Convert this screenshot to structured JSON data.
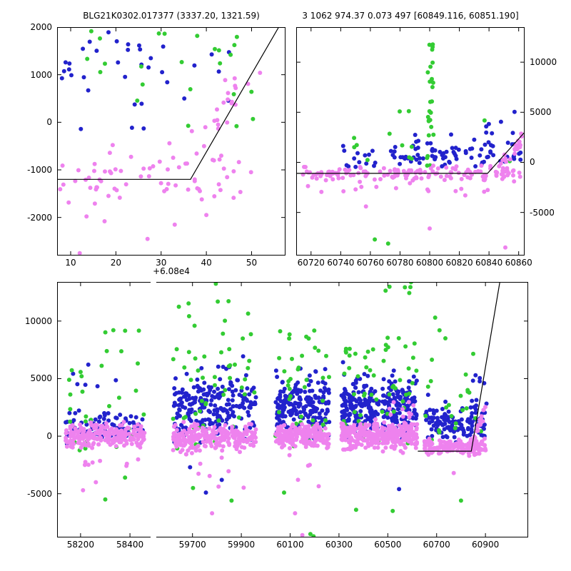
{
  "colors": {
    "blue": "#2222cc",
    "green": "#33cc33",
    "violet": "#ee82ee",
    "line": "#000000",
    "axis": "#000000"
  },
  "chart_data": [
    {
      "id": "top-left-zoom",
      "type": "scatter",
      "title": "BLG21K0302.017377 (3337.20, 1321.59)",
      "xlim": [
        7,
        57.5
      ],
      "ylim": [
        -2800,
        2000
      ],
      "xtick_offset": "+6.08e4",
      "xticks": [
        {
          "v": 10,
          "label": "10"
        },
        {
          "v": 20,
          "label": "20"
        },
        {
          "v": 30,
          "label": "30"
        },
        {
          "v": 40,
          "label": "40"
        },
        {
          "v": 50,
          "label": "50"
        }
      ],
      "yticks": [
        {
          "v": -2000,
          "label": "-2000"
        },
        {
          "v": -1000,
          "label": "-1000"
        },
        {
          "v": 0,
          "label": "0"
        },
        {
          "v": 1000,
          "label": "1000"
        },
        {
          "v": 2000,
          "label": "2000"
        }
      ],
      "ytick_side": "left",
      "grid": false,
      "series": [
        {
          "color": "violet",
          "n": 68,
          "x": [
            7,
            52
          ],
          "y": {
            "dist": "normal",
            "mean": -1100,
            "sd": 330,
            "clip": [
              -1850,
              -350
            ]
          }
        },
        {
          "color": "violet",
          "n": 16,
          "x": [
            36,
            52
          ],
          "y": {
            "dist": "trend",
            "from": -700,
            "to": 800,
            "sd": 280
          }
        },
        {
          "color": "violet",
          "n": 6,
          "x": [
            44,
            52.5
          ],
          "y": {
            "dist": "uniform",
            "range": [
              550,
              1150
            ]
          }
        },
        {
          "color": "blue",
          "n": 30,
          "x": [
            7,
            45
          ],
          "y": {
            "dist": "normal",
            "mean": 1150,
            "sd": 550,
            "clip": [
              -150,
              1950
            ]
          }
        },
        {
          "color": "blue",
          "n": 6,
          "x": [
            7,
            11.5
          ],
          "y": {
            "dist": "uniform",
            "range": [
              700,
              1900
            ]
          }
        },
        {
          "color": "green",
          "n": 24,
          "x": [
            13,
            52
          ],
          "y": {
            "dist": "uniform",
            "range": [
              -100,
              1950
            ]
          }
        }
      ],
      "points": [
        [
          12,
          -2750,
          "violet"
        ],
        [
          17.5,
          -2080,
          "violet"
        ],
        [
          27,
          -2450,
          "violet"
        ],
        [
          40,
          -1950,
          "violet"
        ],
        [
          13.5,
          -1980,
          "violet"
        ],
        [
          33,
          -2150,
          "violet"
        ]
      ],
      "line": {
        "points": [
          [
            7,
            -1200
          ],
          [
            36.5,
            -1200
          ],
          [
            56,
            2000
          ]
        ]
      }
    },
    {
      "id": "top-right-zoom",
      "type": "scatter",
      "title": "3 1062 974.37 0.073 497 [60849.116, 60851.190]",
      "xlim": [
        60710,
        60864
      ],
      "ylim": [
        -9300,
        13500
      ],
      "xticks": [
        {
          "v": 60720,
          "label": "60720"
        },
        {
          "v": 60740,
          "label": "60740"
        },
        {
          "v": 60760,
          "label": "60760"
        },
        {
          "v": 60780,
          "label": "60780"
        },
        {
          "v": 60800,
          "label": "60800"
        },
        {
          "v": 60820,
          "label": "60820"
        },
        {
          "v": 60840,
          "label": "60840"
        },
        {
          "v": 60860,
          "label": "60860"
        }
      ],
      "yticks": [
        {
          "v": -5000,
          "label": "-5000"
        },
        {
          "v": 0,
          "label": "0"
        },
        {
          "v": 5000,
          "label": "5000"
        },
        {
          "v": 10000,
          "label": "10000"
        }
      ],
      "ytick_side": "right",
      "grid": false,
      "series": [
        {
          "color": "violet",
          "n": 150,
          "x": [
            60712,
            60861
          ],
          "y": {
            "dist": "normal",
            "mean": -1150,
            "sd": 420,
            "clip": [
              -2400,
              -200
            ]
          }
        },
        {
          "color": "violet",
          "n": 12,
          "x": [
            60715,
            60855
          ],
          "y": {
            "dist": "uniform",
            "range": [
              -2950,
              -2350
            ]
          }
        },
        {
          "color": "violet",
          "n": 22,
          "x": [
            60844,
            60863
          ],
          "y": {
            "dist": "trend",
            "from": -900,
            "to": 2300,
            "sd": 320
          }
        },
        {
          "color": "blue",
          "n": 72,
          "x": [
            60788,
            60862
          ],
          "y": {
            "dist": "normal",
            "mean": 1000,
            "sd": 750,
            "clip": [
              -400,
              3200
            ]
          }
        },
        {
          "color": "blue",
          "n": 28,
          "x": [
            60738,
            60792
          ],
          "y": {
            "dist": "normal",
            "mean": 600,
            "sd": 600,
            "clip": [
              -500,
              2400
            ]
          }
        },
        {
          "color": "blue",
          "n": 7,
          "x": [
            60838,
            60862
          ],
          "y": {
            "dist": "uniform",
            "range": [
              2800,
              5100
            ]
          }
        },
        {
          "color": "green",
          "n": 26,
          "x": [
            60798,
            60803
          ],
          "y": {
            "dist": "uniform",
            "range": [
              -600,
              12200
            ]
          }
        },
        {
          "color": "green",
          "n": 14,
          "x": [
            60742,
            60858
          ],
          "y": {
            "dist": "uniform",
            "range": [
              -300,
              5200
            ]
          }
        }
      ],
      "points": [
        [
          60763,
          -7700,
          "green"
        ],
        [
          60772,
          -8100,
          "green"
        ],
        [
          60757,
          -4400,
          "violet"
        ],
        [
          60800,
          -6600,
          "violet"
        ],
        [
          60824,
          -3300,
          "violet"
        ],
        [
          60851,
          -8500,
          "violet"
        ],
        [
          60727,
          -2950,
          "violet"
        ]
      ],
      "line": {
        "points": [
          [
            60710,
            -1100
          ],
          [
            60839,
            -1100
          ],
          [
            60864,
            3000
          ]
        ]
      }
    },
    {
      "id": "bottom-full-lightcurve",
      "type": "scatter",
      "x_segments": [
        {
          "data": [
            58105,
            58495
          ],
          "frac": [
            0,
            0.2045
          ]
        },
        {
          "data": [
            59540,
            61075
          ],
          "frac": [
            0.2045,
            1
          ]
        }
      ],
      "x_break_frac": 0.2045,
      "ylim": [
        -8800,
        13400
      ],
      "xticks": [
        {
          "v": 58200,
          "label": "58200"
        },
        {
          "v": 58400,
          "label": "58400"
        },
        {
          "v": 59700,
          "label": "59700"
        },
        {
          "v": 59900,
          "label": "59900"
        },
        {
          "v": 60100,
          "label": "60100"
        },
        {
          "v": 60300,
          "label": "60300"
        },
        {
          "v": 60500,
          "label": "60500"
        },
        {
          "v": 60700,
          "label": "60700"
        },
        {
          "v": 60900,
          "label": "60900"
        }
      ],
      "yticks": [
        {
          "v": -5000,
          "label": "-5000"
        },
        {
          "v": 0,
          "label": "0"
        },
        {
          "v": 5000,
          "label": "5000"
        },
        {
          "v": 10000,
          "label": "10000"
        }
      ],
      "ytick_side": "left",
      "grid": false,
      "series": [
        {
          "color": "violet",
          "n": 230,
          "x": [
            58140,
            58460
          ],
          "y": {
            "dist": "normal",
            "mean": 50,
            "sd": 480,
            "clip": [
              -1600,
              1500
            ]
          }
        },
        {
          "color": "violet",
          "n": 8,
          "x": [
            58160,
            58440
          ],
          "y": {
            "dist": "uniform",
            "range": [
              -2600,
              -1700
            ]
          }
        },
        {
          "color": "blue",
          "n": 85,
          "x": [
            58140,
            58460
          ],
          "y": {
            "dist": "normal",
            "mean": 700,
            "sd": 700,
            "clip": [
              -1200,
              2800
            ]
          }
        },
        {
          "color": "blue",
          "n": 6,
          "x": [
            58150,
            58430
          ],
          "y": {
            "dist": "uniform",
            "range": [
              3200,
              7000
            ]
          }
        },
        {
          "color": "green",
          "n": 20,
          "x": [
            58140,
            58460
          ],
          "y": {
            "dist": "uniform",
            "range": [
              -1500,
              4000
            ]
          }
        },
        {
          "color": "green",
          "n": 12,
          "x": [
            58150,
            58440
          ],
          "y": {
            "dist": "uniform",
            "range": [
              4000,
              9800
            ]
          }
        },
        {
          "color": "violet",
          "n": 250,
          "x": [
            59620,
            59960
          ],
          "y": {
            "dist": "normal",
            "mean": -100,
            "sd": 550,
            "clip": [
              -2200,
              1300
            ]
          }
        },
        {
          "color": "violet",
          "n": 6,
          "x": [
            59650,
            59940
          ],
          "y": {
            "dist": "uniform",
            "range": [
              -4800,
              -2400
            ]
          }
        },
        {
          "color": "blue",
          "n": 240,
          "x": [
            59620,
            59960
          ],
          "y": {
            "dist": "normal",
            "mean": 2400,
            "sd": 1500,
            "clip": [
              -600,
              7200
            ]
          }
        },
        {
          "color": "green",
          "n": 48,
          "x": [
            59620,
            59960
          ],
          "y": {
            "dist": "uniform",
            "range": [
              -1800,
              9200
            ]
          }
        },
        {
          "color": "green",
          "n": 9,
          "x": [
            59640,
            59930
          ],
          "y": {
            "dist": "uniform",
            "range": [
              9500,
              13900
            ]
          }
        },
        {
          "color": "violet",
          "n": 220,
          "x": [
            60040,
            60260
          ],
          "y": {
            "dist": "normal",
            "mean": 0,
            "sd": 500,
            "clip": [
              -1700,
              1400
            ]
          }
        },
        {
          "color": "violet",
          "n": 4,
          "x": [
            60060,
            60240
          ],
          "y": {
            "dist": "uniform",
            "range": [
              -4400,
              -2200
            ]
          }
        },
        {
          "color": "blue",
          "n": 210,
          "x": [
            60040,
            60260
          ],
          "y": {
            "dist": "normal",
            "mean": 2400,
            "sd": 1350,
            "clip": [
              -400,
              6600
            ]
          }
        },
        {
          "color": "green",
          "n": 40,
          "x": [
            60040,
            60260
          ],
          "y": {
            "dist": "uniform",
            "range": [
              -1000,
              9200
            ]
          }
        },
        {
          "color": "violet",
          "n": 180,
          "x": [
            60310,
            60465
          ],
          "y": {
            "dist": "normal",
            "mean": 50,
            "sd": 550,
            "clip": [
              -1800,
              1500
            ]
          }
        },
        {
          "color": "blue",
          "n": 160,
          "x": [
            60310,
            60465
          ],
          "y": {
            "dist": "normal",
            "mean": 2500,
            "sd": 1300,
            "clip": [
              -200,
              6600
            ]
          }
        },
        {
          "color": "green",
          "n": 30,
          "x": [
            60310,
            60465
          ],
          "y": {
            "dist": "uniform",
            "range": [
              -900,
              9000
            ]
          }
        },
        {
          "color": "violet",
          "n": 180,
          "x": [
            60475,
            60620
          ],
          "y": {
            "dist": "normal",
            "mean": 0,
            "sd": 550,
            "clip": [
              -1700,
              1500
            ]
          }
        },
        {
          "color": "violet",
          "n": 10,
          "x": [
            60490,
            60615
          ],
          "y": {
            "dist": "uniform",
            "range": [
              1600,
              3100
            ]
          }
        },
        {
          "color": "blue",
          "n": 150,
          "x": [
            60475,
            60620
          ],
          "y": {
            "dist": "normal",
            "mean": 2400,
            "sd": 1300,
            "clip": [
              -300,
              6500
            ]
          }
        },
        {
          "color": "green",
          "n": 26,
          "x": [
            60475,
            60620
          ],
          "y": {
            "dist": "uniform",
            "range": [
              -700,
              8800
            ]
          }
        },
        {
          "color": "green",
          "n": 6,
          "x": [
            60490,
            60600
          ],
          "y": {
            "dist": "uniform",
            "range": [
              12400,
              13400
            ]
          }
        },
        {
          "color": "violet",
          "n": 170,
          "x": [
            60650,
            60905
          ],
          "y": {
            "dist": "normal",
            "mean": -950,
            "sd": 330,
            "clip": [
              -1900,
              -100
            ]
          }
        },
        {
          "color": "violet",
          "n": 22,
          "x": [
            60845,
            60900
          ],
          "y": {
            "dist": "trend",
            "from": -700,
            "to": 2300,
            "sd": 300
          }
        },
        {
          "color": "blue",
          "n": 130,
          "x": [
            60650,
            60905
          ],
          "y": {
            "dist": "normal",
            "mean": 1100,
            "sd": 900,
            "clip": [
              -600,
              4200
            ]
          }
        },
        {
          "color": "blue",
          "n": 5,
          "x": [
            60840,
            60895
          ],
          "y": {
            "dist": "uniform",
            "range": [
              4300,
              5400
            ]
          }
        },
        {
          "color": "green",
          "n": 22,
          "x": [
            60650,
            60900
          ],
          "y": {
            "dist": "uniform",
            "range": [
              -1400,
              7600
            ]
          }
        }
      ],
      "points": [
        [
          58210,
          -4700,
          "violet"
        ],
        [
          58262,
          -4000,
          "violet"
        ],
        [
          58300,
          -5500,
          "green"
        ],
        [
          58380,
          -3600,
          "green"
        ],
        [
          59780,
          -6700,
          "violet"
        ],
        [
          59690,
          -2700,
          "blue"
        ],
        [
          59755,
          -4900,
          "blue"
        ],
        [
          59820,
          -3800,
          "blue"
        ],
        [
          59860,
          -5600,
          "green"
        ],
        [
          59702,
          -4500,
          "green"
        ],
        [
          60150,
          -8600,
          "violet"
        ],
        [
          60120,
          -6700,
          "violet"
        ],
        [
          60075,
          -4900,
          "green"
        ],
        [
          60183,
          -8500,
          "green"
        ],
        [
          60196,
          -8700,
          "green"
        ],
        [
          60370,
          -6400,
          "green"
        ],
        [
          60546,
          -4600,
          "blue"
        ],
        [
          60520,
          -6500,
          "green"
        ],
        [
          60770,
          -3200,
          "violet"
        ],
        [
          60694,
          10300,
          "green"
        ],
        [
          60712,
          9200,
          "green"
        ],
        [
          60736,
          8500,
          "green"
        ],
        [
          60800,
          -5600,
          "green"
        ]
      ],
      "line": {
        "points": [
          [
            60623,
            -1300
          ],
          [
            60842,
            -1300
          ],
          [
            60959,
            13400
          ]
        ]
      }
    }
  ]
}
